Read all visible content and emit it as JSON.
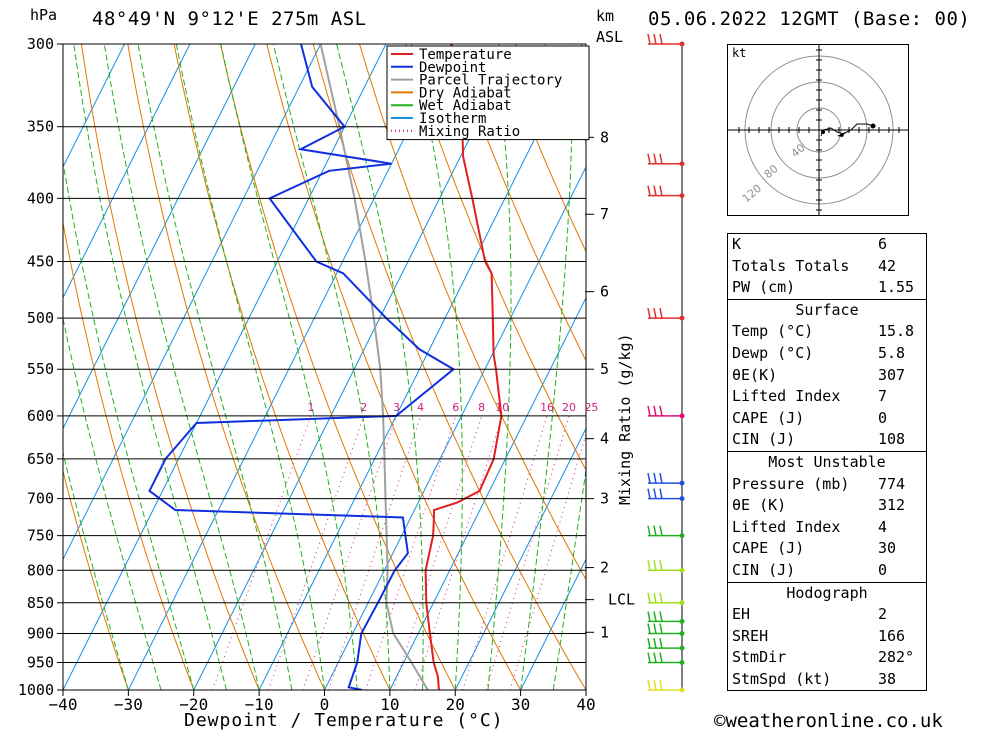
{
  "header": {
    "location": "48°49'N  9°12'E  275m  ASL",
    "datetime": "05.06.2022  12GMT  (Base: 00)",
    "pressure_unit": "hPa",
    "height_unit_line1": "km",
    "height_unit_line2": "ASL"
  },
  "footer": {
    "copyright": "©weatheronline.co.uk"
  },
  "chart_data": {
    "type": "skew-t",
    "xlabel": "Dewpoint / Temperature (°C)",
    "mixing_ratio_axis_label": "Mixing Ratio (g/kg)",
    "x_ticks": [
      -40,
      -30,
      -20,
      -10,
      0,
      10,
      20,
      30,
      40
    ],
    "pressure_levels": [
      300,
      350,
      400,
      450,
      500,
      550,
      600,
      650,
      700,
      750,
      800,
      850,
      900,
      950,
      1000
    ],
    "xlim": [
      -40,
      40
    ],
    "plim": [
      1000,
      300
    ],
    "height_km_ticks": [
      {
        "label": "8",
        "p": 357
      },
      {
        "label": "7",
        "p": 412
      },
      {
        "label": "6",
        "p": 476
      },
      {
        "label": "5",
        "p": 550
      },
      {
        "label": "4",
        "p": 626
      },
      {
        "label": "3",
        "p": 700
      },
      {
        "label": "2",
        "p": 796
      },
      {
        "label": "LCL",
        "p": 845
      },
      {
        "label": "1",
        "p": 898
      }
    ],
    "mixing_ratio_labels": [
      "1",
      "2",
      "3",
      "4",
      "6",
      "8",
      "10",
      "16",
      "20",
      "25"
    ],
    "mixing_ratio_values": [
      1,
      2,
      3,
      4,
      6,
      8,
      10,
      16,
      20,
      25
    ],
    "legend": [
      {
        "label": "Temperature",
        "color": "#e02020",
        "style": "solid"
      },
      {
        "label": "Dewpoint",
        "color": "#1030e0",
        "style": "solid"
      },
      {
        "label": "Parcel Trajectory",
        "color": "#a0a0a0",
        "style": "solid"
      },
      {
        "label": "Dry Adiabat",
        "color": "#e07800",
        "style": "solid"
      },
      {
        "label": "Wet Adiabat",
        "color": "#20b020",
        "style": "solid"
      },
      {
        "label": "Isotherm",
        "color": "#1890e0",
        "style": "solid"
      },
      {
        "label": "Mixing Ratio",
        "color": "#d02080",
        "style": "dotted"
      }
    ],
    "temperature": [
      {
        "p": 1000,
        "t": 17.5
      },
      {
        "p": 975,
        "t": 16.3
      },
      {
        "p": 950,
        "t": 14.6
      },
      {
        "p": 900,
        "t": 11.8
      },
      {
        "p": 850,
        "t": 8.9
      },
      {
        "p": 800,
        "t": 6.3
      },
      {
        "p": 750,
        "t": 4.8
      },
      {
        "p": 730,
        "t": 3.8
      },
      {
        "p": 715,
        "t": 3.0
      },
      {
        "p": 705,
        "t": 6.0
      },
      {
        "p": 690,
        "t": 8.5
      },
      {
        "p": 650,
        "t": 8.2
      },
      {
        "p": 600,
        "t": 6.1
      },
      {
        "p": 550,
        "t": 1.7
      },
      {
        "p": 535,
        "t": 0.2
      },
      {
        "p": 500,
        "t": -2.7
      },
      {
        "p": 460,
        "t": -6.3
      },
      {
        "p": 450,
        "t": -8.2
      },
      {
        "p": 400,
        "t": -15.0
      },
      {
        "p": 370,
        "t": -19.6
      },
      {
        "p": 350,
        "t": -22.0
      },
      {
        "p": 300,
        "t": -30.0
      }
    ],
    "dewpoint": [
      {
        "p": 1000,
        "t": 5.8
      },
      {
        "p": 995,
        "t": 3.5
      },
      {
        "p": 950,
        "t": 2.9
      },
      {
        "p": 900,
        "t": 1.3
      },
      {
        "p": 850,
        "t": 1.5
      },
      {
        "p": 800,
        "t": 1.6
      },
      {
        "p": 775,
        "t": 2.3
      },
      {
        "p": 725,
        "t": -1.2
      },
      {
        "p": 715,
        "t": -36.6
      },
      {
        "p": 690,
        "t": -42.0
      },
      {
        "p": 650,
        "t": -42.0
      },
      {
        "p": 608,
        "t": -40.0
      },
      {
        "p": 600,
        "t": -10.0
      },
      {
        "p": 550,
        "t": -4.8
      },
      {
        "p": 530,
        "t": -11.5
      },
      {
        "p": 500,
        "t": -19.0
      },
      {
        "p": 460,
        "t": -29.0
      },
      {
        "p": 450,
        "t": -34.0
      },
      {
        "p": 400,
        "t": -46.0
      },
      {
        "p": 380,
        "t": -39.0
      },
      {
        "p": 375,
        "t": -30.0
      },
      {
        "p": 365,
        "t": -45.0
      },
      {
        "p": 350,
        "t": -40.0
      },
      {
        "p": 325,
        "t": -48.0
      },
      {
        "p": 300,
        "t": -53.0
      }
    ],
    "parcel": [
      {
        "p": 1000,
        "t": 15.8
      },
      {
        "p": 950,
        "t": 11.2
      },
      {
        "p": 900,
        "t": 6.2
      },
      {
        "p": 850,
        "t": 2.8
      },
      {
        "p": 800,
        "t": 0.5
      },
      {
        "p": 750,
        "t": -2.3
      },
      {
        "p": 700,
        "t": -5.3
      },
      {
        "p": 650,
        "t": -8.5
      },
      {
        "p": 600,
        "t": -12.0
      },
      {
        "p": 550,
        "t": -16.0
      },
      {
        "p": 500,
        "t": -20.9
      },
      {
        "p": 450,
        "t": -26.5
      },
      {
        "p": 400,
        "t": -33.0
      },
      {
        "p": 350,
        "t": -40.8
      },
      {
        "p": 300,
        "t": -50.0
      }
    ],
    "wind_barbs": [
      {
        "p": 300,
        "color": "#e03030"
      },
      {
        "p": 375,
        "color": "#e03030"
      },
      {
        "p": 398,
        "color": "#e03030"
      },
      {
        "p": 500,
        "color": "#e03030"
      },
      {
        "p": 600,
        "color": "#e0107a"
      },
      {
        "p": 680,
        "color": "#2050e0"
      },
      {
        "p": 700,
        "color": "#2050e0"
      },
      {
        "p": 750,
        "color": "#20b020"
      },
      {
        "p": 800,
        "color": "#a0e020"
      },
      {
        "p": 850,
        "color": "#a0e020"
      },
      {
        "p": 880,
        "color": "#20b020"
      },
      {
        "p": 900,
        "color": "#20b020"
      },
      {
        "p": 925,
        "color": "#20b020"
      },
      {
        "p": 950,
        "color": "#20b020"
      },
      {
        "p": 1000,
        "color": "#e0e020"
      }
    ],
    "hodograph": {
      "unit_label": "kt",
      "ring_labels": [
        "40",
        "80",
        "120"
      ]
    }
  },
  "stats": {
    "k_label": "K",
    "k_value": "6",
    "tt_label": "Totals Totals",
    "tt_value": "42",
    "pw_label": "PW (cm)",
    "pw_value": "1.55",
    "surface_title": "Surface",
    "s_temp_label": "Temp (°C)",
    "s_temp_value": "15.8",
    "s_dewp_label": "Dewp (°C)",
    "s_dewp_value": "5.8",
    "s_theta_label": "θE(K)",
    "s_theta_value": "307",
    "s_li_label": "Lifted Index",
    "s_li_value": "7",
    "s_cape_label": "CAPE (J)",
    "s_cape_value": "0",
    "s_cin_label": "CIN (J)",
    "s_cin_value": "108",
    "mu_title": "Most Unstable",
    "mu_pres_label": "Pressure (mb)",
    "mu_pres_value": "774",
    "mu_theta_label": "θE (K)",
    "mu_theta_value": "312",
    "mu_li_label": "Lifted Index",
    "mu_li_value": "4",
    "mu_cape_label": "CAPE (J)",
    "mu_cape_value": "30",
    "mu_cin_label": "CIN (J)",
    "mu_cin_value": "0",
    "hodo_title": "Hodograph",
    "eh_label": "EH",
    "eh_value": "2",
    "srEH_label": "SREH",
    "srEH_value": "166",
    "stmdir_label": "StmDir",
    "stmdir_value": "282°",
    "stmspd_label": "StmSpd (kt)",
    "stmspd_value": "38"
  }
}
